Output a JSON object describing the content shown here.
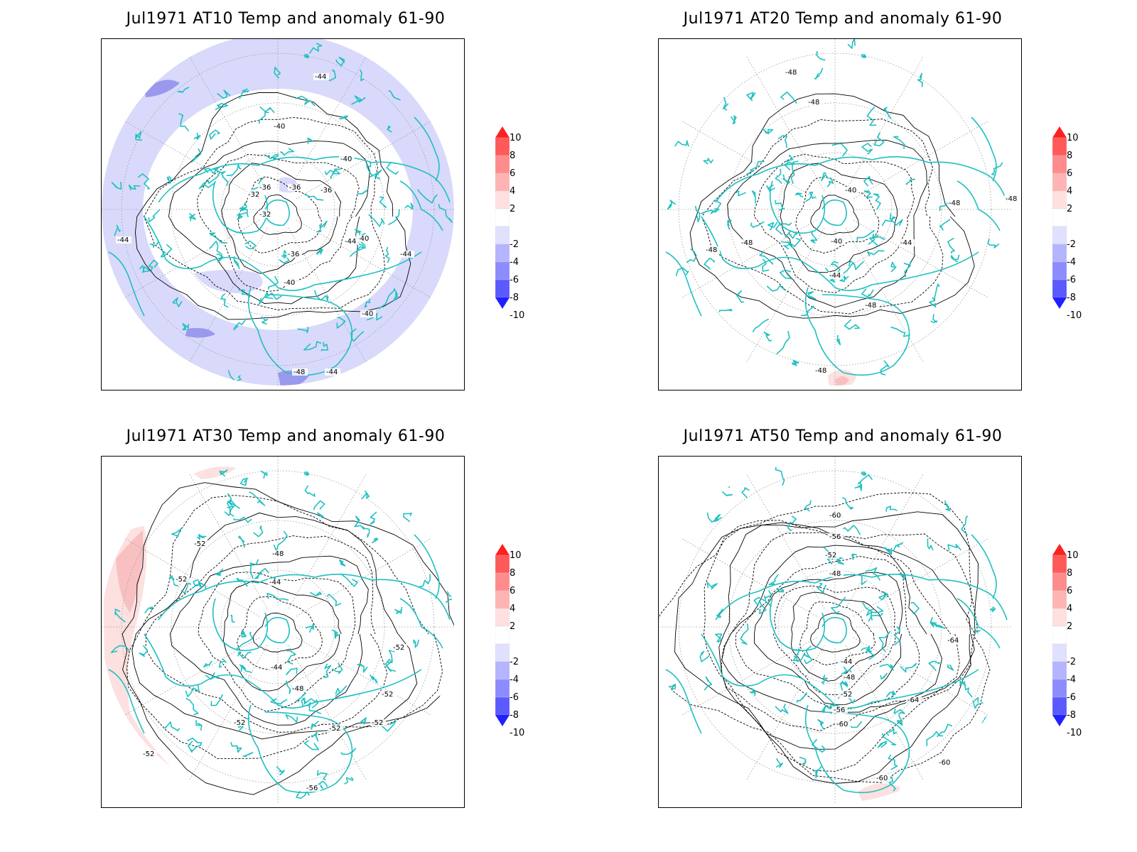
{
  "panels": [
    {
      "title": "Jul1971 AT10 Temp and anomaly 61-90",
      "contour_labels": [
        "-44",
        "-40",
        "-36",
        "-32",
        "-32",
        "-36",
        "-36",
        "-40",
        "-40",
        "-44",
        "-44",
        "-40",
        "-48",
        "-44",
        "-40",
        "-36",
        "-44"
      ],
      "anomaly_fill": "#d9d9fb",
      "anomaly_strong": "#9999ee"
    },
    {
      "title": "Jul1971 AT20 Temp and anomaly 61-90",
      "contour_labels": [
        "-48",
        "-48",
        "-40",
        "-40",
        "-44",
        "-48",
        "-48",
        "-48",
        "-48",
        "-48",
        "-44",
        "-48"
      ],
      "anomaly_fill": "#fde0e0",
      "anomaly_strong": "#f8c0c0"
    },
    {
      "title": "Jul1971 AT30 Temp and anomaly 61-90",
      "contour_labels": [
        "-52",
        "-48",
        "-44",
        "-52",
        "-44",
        "-48",
        "-52",
        "-52",
        "-52",
        "-52",
        "-52",
        "-56",
        "-52"
      ],
      "anomaly_fill": "#fde0e0",
      "anomaly_strong": "#f8c0c0"
    },
    {
      "title": "Jul1971 AT50 Temp and anomaly 61-90",
      "contour_labels": [
        "-60",
        "-56",
        "-52",
        "-48",
        "-44",
        "-48",
        "-52",
        "-56",
        "-60",
        "-64",
        "-64",
        "-60",
        "-60"
      ],
      "anomaly_fill": "#fde0e0",
      "anomaly_strong": "#f8c0c0"
    }
  ],
  "colorbar": {
    "labels": [
      "10",
      "8",
      "6",
      "4",
      "2",
      "-2",
      "-4",
      "-6",
      "-8",
      "-10"
    ],
    "colors": [
      "#ff2020",
      "#ff5a5a",
      "#ff8c8c",
      "#ffb4b4",
      "#ffe0e0",
      "#ffffff",
      "#e0e0ff",
      "#b4b4ff",
      "#8c8cff",
      "#5a5aff",
      "#2020ff"
    ]
  },
  "coastline_color": "#20c0c0"
}
